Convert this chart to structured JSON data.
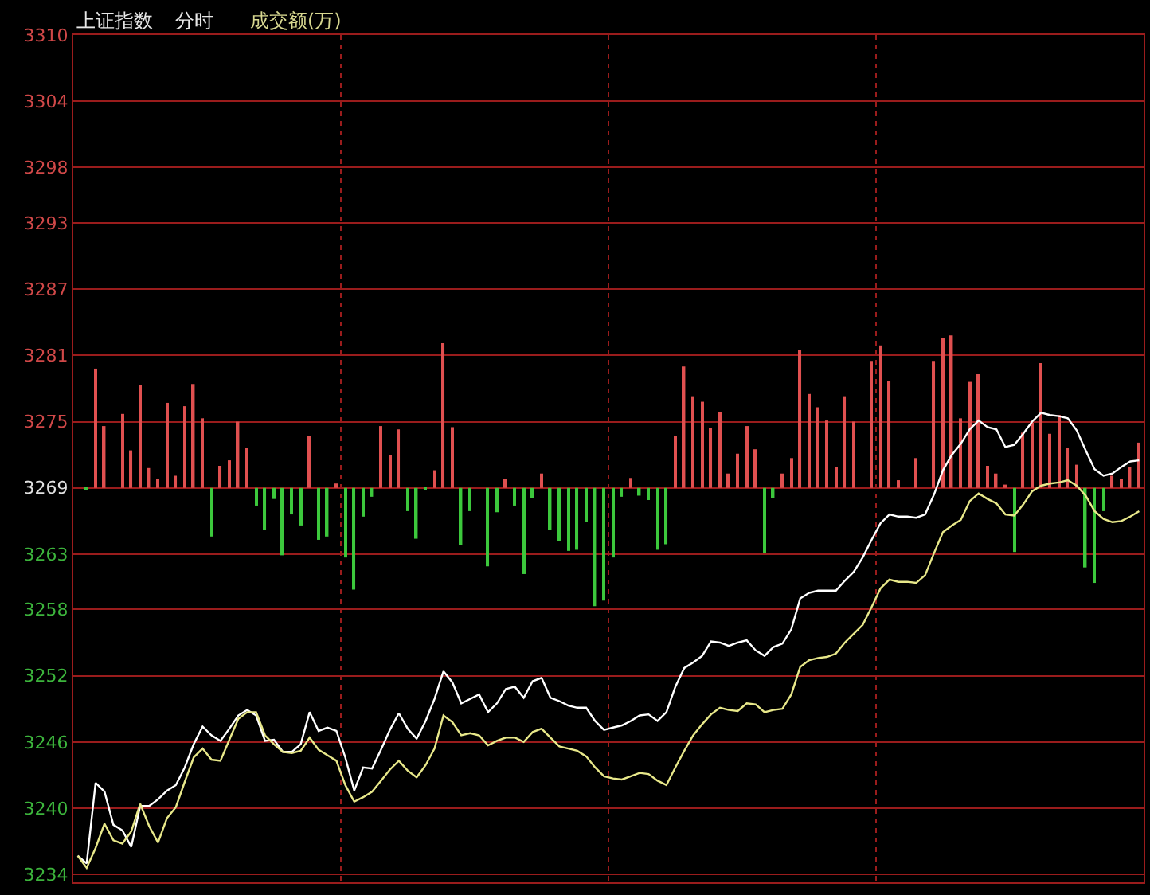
{
  "chart_data": {
    "type": "line",
    "title": "上证指数",
    "subtitle": "分时",
    "annotations": [
      "成交额(万)"
    ],
    "categories": [
      null,
      null,
      null,
      null,
      null,
      null,
      null,
      null,
      null,
      null,
      null,
      null,
      null,
      null,
      null,
      null,
      null,
      null,
      null,
      null,
      null,
      null,
      null,
      null,
      null,
      null,
      null,
      null,
      null,
      null,
      null,
      null,
      null,
      null,
      null,
      null,
      null,
      null,
      null,
      null,
      null,
      null,
      null,
      null,
      null,
      null,
      null,
      null,
      null,
      null,
      null,
      null,
      null,
      null,
      null,
      null,
      null,
      null,
      null,
      null,
      null,
      null,
      null,
      null,
      null,
      null,
      null,
      null,
      null,
      null,
      null,
      null,
      null,
      null,
      null,
      null,
      null,
      null,
      null,
      null,
      null,
      null,
      null,
      null,
      null,
      null,
      null,
      null,
      null,
      null,
      null,
      null,
      null,
      null,
      null,
      null,
      null,
      null,
      null,
      null,
      null,
      null,
      null,
      null,
      null,
      null,
      null,
      null,
      null,
      null,
      null,
      null,
      null,
      null,
      null,
      null,
      null,
      null,
      null,
      null
    ],
    "ylim": [
      3233.3,
      3310
    ],
    "yticks": [
      3310,
      3304,
      3298,
      3293,
      3287,
      3281,
      3275,
      3269,
      3263,
      3258,
      3252,
      3246,
      3240,
      3234
    ],
    "tick_labels": "y",
    "grid": true,
    "series": [
      {
        "color": "#ffffff",
        "values": [
          3235.7,
          3235.0,
          3242.3,
          3241.5,
          3238.5,
          3238.0,
          3236.5,
          3240.2,
          3240.2,
          3240.8,
          3241.6,
          3242.1,
          3243.7,
          3245.8,
          3247.4,
          3246.6,
          3246.1,
          3247.2,
          3248.4,
          3248.9,
          3248.4,
          3246.1,
          3246.2,
          3245.1,
          3245.1,
          3245.8,
          3248.7,
          3247.0,
          3247.3,
          3247.0,
          3244.6,
          3241.6,
          3243.7,
          3243.6,
          3245.3,
          3247.1,
          3248.6,
          3247.2,
          3246.3,
          3247.9,
          3249.9,
          3252.4,
          3251.4,
          3249.5,
          3249.9,
          3250.3,
          3248.7,
          3249.5,
          3250.8,
          3251.0,
          3250.0,
          3251.5,
          3251.8,
          3250.0,
          3249.7,
          3249.3,
          3249.1,
          3249.1,
          3247.9,
          3247.1,
          3247.3,
          3247.5,
          3247.9,
          3248.4,
          3248.5,
          3247.9,
          3248.7,
          3251.0,
          3252.7,
          3253.2,
          3253.8,
          3255.1,
          3255.0,
          3254.7,
          3255.0,
          3255.2,
          3254.3,
          3253.8,
          3254.6,
          3254.9,
          3256.2,
          3259.0,
          3259.5,
          3259.7,
          3259.7,
          3259.7,
          3260.6,
          3261.4,
          3262.7,
          3264.3,
          3265.8,
          3266.6,
          3266.4,
          3266.4,
          3266.3,
          3266.6,
          3268.4,
          3270.6,
          3272.0,
          3273.0,
          3274.3,
          3275.1,
          3274.5,
          3274.3,
          3272.7,
          3272.9,
          3273.9,
          3275.0,
          3275.8,
          3275.6,
          3275.5,
          3275.3,
          3274.2,
          3272.4,
          3270.7,
          3270.1,
          3270.3,
          3270.9,
          3271.4,
          3271.5
        ]
      },
      {
        "color": "#e8e88a",
        "values": [
          3235.7,
          3234.6,
          3236.4,
          3238.6,
          3237.1,
          3236.8,
          3237.9,
          3240.4,
          3238.4,
          3236.9,
          3239.1,
          3240.1,
          3242.4,
          3244.6,
          3245.4,
          3244.4,
          3244.3,
          3246.2,
          3248.1,
          3248.7,
          3248.7,
          3246.6,
          3245.8,
          3245.1,
          3245.0,
          3245.2,
          3246.4,
          3245.3,
          3244.8,
          3244.3,
          3242.1,
          3240.6,
          3241.0,
          3241.5,
          3242.5,
          3243.5,
          3244.3,
          3243.4,
          3242.8,
          3243.9,
          3245.4,
          3248.4,
          3247.8,
          3246.6,
          3246.8,
          3246.6,
          3245.7,
          3246.1,
          3246.4,
          3246.4,
          3246.0,
          3246.9,
          3247.2,
          3246.4,
          3245.6,
          3245.4,
          3245.2,
          3244.7,
          3243.7,
          3242.9,
          3242.7,
          3242.6,
          3242.9,
          3243.2,
          3243.1,
          3242.5,
          3242.1,
          3243.7,
          3245.2,
          3246.6,
          3247.6,
          3248.5,
          3249.1,
          3248.9,
          3248.8,
          3249.5,
          3249.4,
          3248.7,
          3248.9,
          3249.0,
          3250.3,
          3252.8,
          3253.4,
          3253.6,
          3253.7,
          3254.0,
          3255.0,
          3255.8,
          3256.6,
          3258.2,
          3259.9,
          3260.7,
          3260.5,
          3260.5,
          3260.4,
          3261.1,
          3263.1,
          3265.0,
          3265.6,
          3266.1,
          3267.8,
          3268.5,
          3268.0,
          3267.6,
          3266.6,
          3266.5,
          3267.5,
          3268.7,
          3269.2,
          3269.4,
          3269.5,
          3269.7,
          3269.2,
          3268.3,
          3266.9,
          3266.2,
          3265.9,
          3266.0,
          3266.4,
          3266.9
        ]
      },
      {
        "type": "bar",
        "color": "#e05050",
        "values": [
          null,
          null,
          10.8,
          5.6,
          null,
          6.7,
          3.4,
          9.3,
          1.8,
          0.8,
          7.7,
          1.1,
          7.4,
          9.4,
          6.3,
          null,
          2.0,
          2.5,
          6.0,
          3.6,
          null,
          null,
          null,
          null,
          null,
          null,
          4.7,
          null,
          null,
          0.4,
          null,
          null,
          null,
          null,
          5.6,
          3.0,
          5.3,
          null,
          null,
          null,
          1.6,
          13.1,
          5.5,
          null,
          null,
          null,
          null,
          null,
          0.8,
          null,
          null,
          null,
          1.3,
          null,
          null,
          null,
          null,
          null,
          null,
          null,
          null,
          null,
          0.9,
          null,
          null,
          null,
          null,
          4.7,
          11.0,
          8.3,
          7.8,
          5.4,
          6.9,
          1.3,
          3.1,
          5.6,
          3.5,
          null,
          null,
          1.3,
          2.7,
          12.5,
          8.5,
          7.3,
          6.1,
          1.9,
          8.3,
          6.0,
          null,
          11.5,
          12.9,
          9.7,
          0.7,
          null,
          2.7,
          null,
          11.5,
          13.6,
          13.8,
          6.3,
          9.6,
          10.3,
          2.0,
          1.3,
          0.3,
          null,
          5.0,
          5.9,
          11.3,
          4.9,
          6.6,
          3.6,
          2.1,
          null,
          null,
          null,
          1.1,
          0.8,
          1.9,
          4.1
        ],
        "base": [
          null,
          null,
          3269,
          3269,
          null,
          3269,
          3269,
          3269,
          3269,
          3269,
          3269,
          3269,
          3269,
          3269,
          3269,
          null,
          3269,
          3269,
          3269,
          3269,
          null,
          null,
          null,
          null,
          null,
          null,
          3269,
          null,
          null,
          3269,
          null,
          null,
          null,
          null,
          3269,
          3269,
          3269,
          null,
          null,
          null,
          3269,
          3269,
          3269,
          null,
          null,
          null,
          null,
          null,
          3269,
          null,
          null,
          null,
          3269,
          null,
          null,
          null,
          null,
          null,
          null,
          null,
          null,
          null,
          3269,
          null,
          null,
          null,
          null,
          3269,
          3269,
          3269,
          3269,
          3269,
          3269,
          3269,
          3269,
          3269,
          3269,
          null,
          null,
          3269,
          3269,
          3269,
          3269,
          3269,
          3269,
          3269,
          3269,
          3269,
          null,
          3269,
          3269,
          3269,
          3269,
          null,
          3269,
          null,
          3269,
          3269,
          3269,
          3269,
          3269,
          3269,
          3269,
          3269,
          3269,
          null,
          3269,
          3269,
          3269,
          3269,
          3269,
          3269,
          3269,
          null,
          null,
          null,
          3269,
          3269,
          3269,
          3269
        ]
      },
      {
        "type": "bar",
        "color": "#3cc83c",
        "values": [
          null,
          -0.2,
          null,
          null,
          null,
          null,
          null,
          null,
          null,
          null,
          null,
          null,
          null,
          null,
          null,
          -4.4,
          null,
          null,
          null,
          null,
          -1.6,
          -3.8,
          -1.0,
          -6.1,
          -2.4,
          -3.4,
          null,
          -4.7,
          -4.4,
          null,
          -6.3,
          -9.2,
          -2.6,
          -0.8,
          null,
          null,
          null,
          -2.1,
          -4.6,
          -0.2,
          null,
          null,
          null,
          -5.2,
          -2.1,
          null,
          -7.1,
          -2.2,
          null,
          -1.6,
          -7.8,
          -0.9,
          null,
          -3.8,
          -4.8,
          -5.7,
          -5.6,
          -3.1,
          -10.7,
          -10.2,
          -6.3,
          -0.8,
          null,
          -0.7,
          -1.1,
          -5.6,
          -5.1,
          null,
          null,
          null,
          null,
          null,
          null,
          null,
          null,
          null,
          null,
          -5.9,
          -0.9,
          null,
          null,
          null,
          null,
          null,
          null,
          null,
          null,
          null,
          null,
          null,
          null,
          null,
          null,
          null,
          null,
          null,
          null,
          null,
          null,
          null,
          null,
          null,
          null,
          null,
          null,
          -5.8,
          null,
          null,
          null,
          null,
          null,
          null,
          null,
          -7.2,
          -8.6,
          -2.1,
          null,
          null,
          null,
          null
        ],
        "base": [
          null,
          3269,
          null,
          null,
          null,
          null,
          null,
          null,
          null,
          null,
          null,
          null,
          null,
          null,
          null,
          3269,
          null,
          null,
          null,
          null,
          3269,
          3269,
          3269,
          3269,
          3269,
          3269,
          null,
          3269,
          3269,
          null,
          3269,
          3269,
          3269,
          3269,
          null,
          null,
          null,
          3269,
          3269,
          3269,
          null,
          null,
          null,
          3269,
          3269,
          null,
          3269,
          3269,
          null,
          3269,
          3269,
          3269,
          null,
          3269,
          3269,
          3269,
          3269,
          3269,
          3269,
          3269,
          3269,
          3269,
          null,
          3269,
          3269,
          3269,
          3269,
          null,
          null,
          null,
          null,
          null,
          null,
          null,
          null,
          null,
          null,
          3269,
          3269,
          null,
          null,
          null,
          null,
          null,
          null,
          null,
          null,
          null,
          null,
          null,
          null,
          null,
          null,
          null,
          null,
          null,
          null,
          null,
          null,
          null,
          null,
          null,
          null,
          null,
          null,
          3269,
          null,
          null,
          null,
          null,
          null,
          null,
          null,
          3269,
          3269,
          3269,
          null,
          null,
          null,
          null
        ]
      }
    ]
  }
}
